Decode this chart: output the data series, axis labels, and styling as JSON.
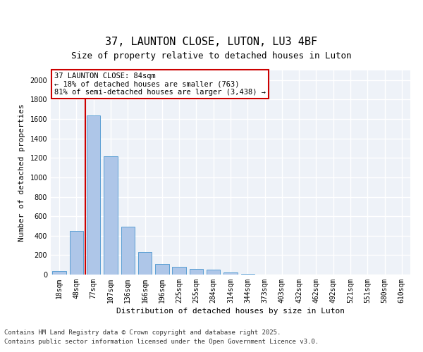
{
  "title": "37, LAUNTON CLOSE, LUTON, LU3 4BF",
  "subtitle": "Size of property relative to detached houses in Luton",
  "xlabel": "Distribution of detached houses by size in Luton",
  "ylabel": "Number of detached properties",
  "categories": [
    "18sqm",
    "48sqm",
    "77sqm",
    "107sqm",
    "136sqm",
    "166sqm",
    "196sqm",
    "225sqm",
    "255sqm",
    "284sqm",
    "314sqm",
    "344sqm",
    "373sqm",
    "403sqm",
    "432sqm",
    "462sqm",
    "492sqm",
    "521sqm",
    "551sqm",
    "580sqm",
    "610sqm"
  ],
  "values": [
    35,
    450,
    1640,
    1220,
    490,
    230,
    110,
    80,
    60,
    50,
    20,
    5,
    0,
    0,
    0,
    0,
    0,
    0,
    0,
    0,
    0
  ],
  "bar_color": "#aec6e8",
  "bar_edge_color": "#5a9fd4",
  "vline_color": "#cc0000",
  "annotation_text": "37 LAUNTON CLOSE: 84sqm\n← 18% of detached houses are smaller (763)\n81% of semi-detached houses are larger (3,438) →",
  "annotation_box_color": "#ffffff",
  "annotation_box_edge_color": "#cc0000",
  "ylim": [
    0,
    2100
  ],
  "yticks": [
    0,
    200,
    400,
    600,
    800,
    1000,
    1200,
    1400,
    1600,
    1800,
    2000
  ],
  "background_color": "#eef2f8",
  "grid_color": "#ffffff",
  "footer_line1": "Contains HM Land Registry data © Crown copyright and database right 2025.",
  "footer_line2": "Contains public sector information licensed under the Open Government Licence v3.0.",
  "title_fontsize": 11,
  "subtitle_fontsize": 9,
  "axis_label_fontsize": 8,
  "tick_fontsize": 7,
  "annotation_fontsize": 7.5,
  "footer_fontsize": 6.5
}
